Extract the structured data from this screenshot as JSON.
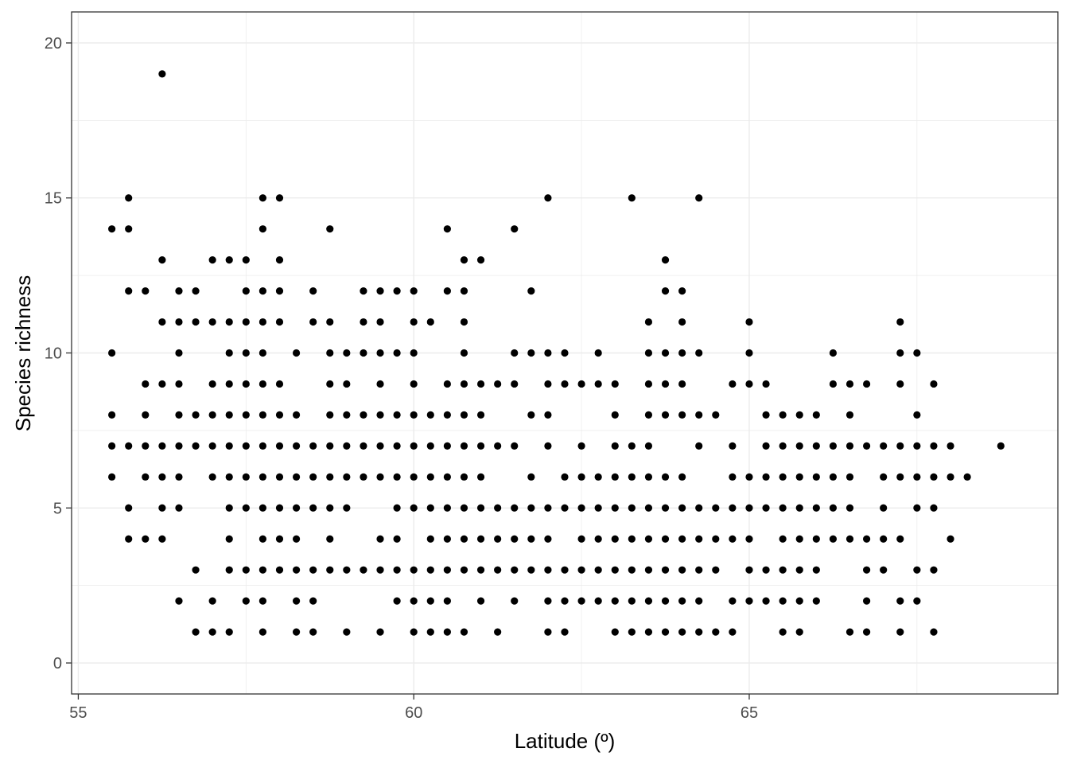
{
  "chart_data": {
    "type": "scatter",
    "xlabel": "Latitude (º)",
    "ylabel": "Species richness",
    "xlim": [
      54.9,
      69.6
    ],
    "ylim": [
      -1,
      21
    ],
    "x_ticks": [
      55,
      60,
      65
    ],
    "y_ticks": [
      0,
      5,
      10,
      15,
      20
    ],
    "grid": true,
    "legend": "none",
    "colors": {
      "point": "#000000",
      "grid": "#ebebeb",
      "frame": "#333333",
      "background": "#ffffff"
    },
    "columns": [
      [
        55.5,
        [
          14,
          10,
          8,
          7,
          6
        ]
      ],
      [
        55.75,
        [
          15,
          14,
          12,
          7,
          5,
          4
        ]
      ],
      [
        56.0,
        [
          12,
          9,
          8,
          7,
          6,
          4
        ]
      ],
      [
        56.25,
        [
          19,
          13,
          11,
          9,
          7,
          6,
          5,
          4
        ]
      ],
      [
        56.5,
        [
          12,
          11,
          10,
          9,
          8,
          7,
          6,
          5,
          2
        ]
      ],
      [
        56.75,
        [
          12,
          11,
          8,
          7,
          3,
          1
        ]
      ],
      [
        57.0,
        [
          13,
          11,
          9,
          8,
          7,
          6,
          2,
          1
        ]
      ],
      [
        57.25,
        [
          13,
          11,
          10,
          9,
          8,
          7,
          6,
          5,
          4,
          3,
          1
        ]
      ],
      [
        57.5,
        [
          13,
          12,
          11,
          10,
          9,
          8,
          7,
          6,
          5,
          3,
          2
        ]
      ],
      [
        57.75,
        [
          15,
          14,
          12,
          11,
          10,
          9,
          8,
          7,
          6,
          5,
          4,
          3,
          2,
          1
        ]
      ],
      [
        58.0,
        [
          15,
          13,
          12,
          11,
          9,
          8,
          7,
          6,
          5,
          4,
          3
        ]
      ],
      [
        58.25,
        [
          10,
          8,
          7,
          6,
          5,
          4,
          3,
          2,
          1
        ]
      ],
      [
        58.5,
        [
          12,
          11,
          7,
          6,
          5,
          3,
          2,
          1
        ]
      ],
      [
        58.75,
        [
          14,
          11,
          10,
          9,
          8,
          7,
          6,
          5,
          4,
          3
        ]
      ],
      [
        59.0,
        [
          10,
          9,
          8,
          7,
          6,
          5,
          3,
          1
        ]
      ],
      [
        59.25,
        [
          12,
          11,
          10,
          8,
          7,
          6,
          3
        ]
      ],
      [
        59.5,
        [
          12,
          11,
          10,
          9,
          8,
          7,
          6,
          4,
          3,
          1
        ]
      ],
      [
        59.75,
        [
          12,
          10,
          8,
          7,
          6,
          5,
          4,
          3,
          2
        ]
      ],
      [
        60.0,
        [
          12,
          11,
          10,
          9,
          8,
          7,
          6,
          5,
          3,
          2,
          1
        ]
      ],
      [
        60.25,
        [
          11,
          8,
          7,
          6,
          5,
          4,
          3,
          2,
          1
        ]
      ],
      [
        60.5,
        [
          14,
          12,
          9,
          8,
          7,
          6,
          5,
          4,
          3,
          2,
          1
        ]
      ],
      [
        60.75,
        [
          13,
          12,
          11,
          10,
          9,
          8,
          7,
          6,
          5,
          4,
          3,
          1
        ]
      ],
      [
        61.0,
        [
          13,
          9,
          8,
          7,
          6,
          5,
          4,
          3,
          2
        ]
      ],
      [
        61.25,
        [
          9,
          7,
          5,
          4,
          3,
          1
        ]
      ],
      [
        61.5,
        [
          14,
          10,
          9,
          7,
          5,
          4,
          3,
          2
        ]
      ],
      [
        61.75,
        [
          12,
          10,
          8,
          6,
          5,
          4,
          3
        ]
      ],
      [
        62.0,
        [
          15,
          10,
          9,
          8,
          7,
          5,
          4,
          3,
          2,
          1
        ]
      ],
      [
        62.25,
        [
          10,
          9,
          6,
          5,
          3,
          2,
          1
        ]
      ],
      [
        62.5,
        [
          9,
          7,
          6,
          5,
          4,
          3,
          2
        ]
      ],
      [
        62.75,
        [
          10,
          9,
          6,
          5,
          4,
          3,
          2
        ]
      ],
      [
        63.0,
        [
          9,
          8,
          7,
          6,
          5,
          4,
          3,
          2,
          1
        ]
      ],
      [
        63.25,
        [
          15,
          7,
          6,
          5,
          4,
          3,
          2,
          1
        ]
      ],
      [
        63.5,
        [
          11,
          10,
          9,
          8,
          7,
          6,
          5,
          4,
          3,
          2,
          1
        ]
      ],
      [
        63.75,
        [
          13,
          12,
          10,
          9,
          8,
          6,
          5,
          4,
          3,
          2,
          1
        ]
      ],
      [
        64.0,
        [
          12,
          11,
          10,
          9,
          8,
          6,
          5,
          4,
          3,
          2,
          1
        ]
      ],
      [
        64.25,
        [
          15,
          10,
          8,
          7,
          5,
          4,
          3,
          2,
          1
        ]
      ],
      [
        64.5,
        [
          8,
          5,
          4,
          3,
          1
        ]
      ],
      [
        64.75,
        [
          9,
          7,
          6,
          5,
          4,
          2,
          1
        ]
      ],
      [
        65.0,
        [
          11,
          10,
          9,
          6,
          5,
          4,
          3,
          2
        ]
      ],
      [
        65.25,
        [
          9,
          8,
          7,
          6,
          5,
          3,
          2
        ]
      ],
      [
        65.5,
        [
          8,
          7,
          6,
          5,
          4,
          3,
          2,
          1
        ]
      ],
      [
        65.75,
        [
          8,
          7,
          6,
          5,
          4,
          3,
          2,
          1
        ]
      ],
      [
        66.0,
        [
          8,
          7,
          6,
          5,
          4,
          3,
          2
        ]
      ],
      [
        66.25,
        [
          10,
          9,
          7,
          6,
          5,
          4
        ]
      ],
      [
        66.5,
        [
          9,
          8,
          7,
          6,
          5,
          4,
          1
        ]
      ],
      [
        66.75,
        [
          9,
          7,
          4,
          3,
          2,
          1
        ]
      ],
      [
        67.0,
        [
          7,
          6,
          5,
          4,
          3
        ]
      ],
      [
        67.25,
        [
          11,
          10,
          9,
          7,
          6,
          4,
          2,
          1
        ]
      ],
      [
        67.5,
        [
          10,
          8,
          7,
          6,
          5,
          3,
          2
        ]
      ],
      [
        67.75,
        [
          9,
          7,
          6,
          5,
          3,
          1
        ]
      ],
      [
        68.0,
        [
          7,
          6,
          4
        ]
      ],
      [
        68.25,
        [
          6
        ]
      ],
      [
        68.75,
        [
          7
        ]
      ]
    ]
  }
}
